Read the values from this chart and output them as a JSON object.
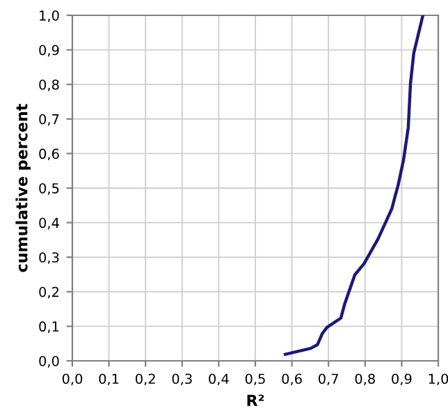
{
  "chart_data": {
    "type": "line",
    "xlabel": "R²",
    "ylabel": "cumulative percent",
    "x": [
      0.582,
      0.651,
      0.67,
      0.683,
      0.696,
      0.734,
      0.744,
      0.772,
      0.797,
      0.835,
      0.854,
      0.873,
      0.883,
      0.89,
      0.905,
      0.918,
      0.924,
      0.933,
      0.958
    ],
    "series": [
      {
        "color": "#1a1a7a",
        "values": [
          0.019,
          0.036,
          0.047,
          0.079,
          0.097,
          0.124,
          0.164,
          0.249,
          0.281,
          0.352,
          0.396,
          0.44,
          0.48,
          0.507,
          0.581,
          0.675,
          0.802,
          0.89,
          1.0
        ]
      }
    ],
    "xlim": [
      0,
      1
    ],
    "ylim": [
      0,
      1
    ],
    "xticks": [
      {
        "value": 0,
        "label": "0,0"
      },
      {
        "value": 0.1,
        "label": "0,1"
      },
      {
        "value": 0.2,
        "label": "0,2"
      },
      {
        "value": 0.3,
        "label": "0,3"
      },
      {
        "value": 0.4,
        "label": "0,4"
      },
      {
        "value": 0.5,
        "label": "0,5"
      },
      {
        "value": 0.6,
        "label": "0,6"
      },
      {
        "value": 0.7,
        "label": "0,7"
      },
      {
        "value": 0.8,
        "label": "0,8"
      },
      {
        "value": 0.9,
        "label": "0,9"
      },
      {
        "value": 1,
        "label": "1,0"
      }
    ],
    "yticks": [
      {
        "value": 0,
        "label": "0,0"
      },
      {
        "value": 0.1,
        "label": "0,1"
      },
      {
        "value": 0.2,
        "label": "0,2"
      },
      {
        "value": 0.3,
        "label": "0,3"
      },
      {
        "value": 0.4,
        "label": "0,4"
      },
      {
        "value": 0.5,
        "label": "0,5"
      },
      {
        "value": 0.6,
        "label": "0,6"
      },
      {
        "value": 0.7,
        "label": "0,7"
      },
      {
        "value": 0.8,
        "label": "0,8"
      },
      {
        "value": 0.9,
        "label": "0,9"
      },
      {
        "value": 1,
        "label": "1,0"
      }
    ],
    "grid": true
  }
}
